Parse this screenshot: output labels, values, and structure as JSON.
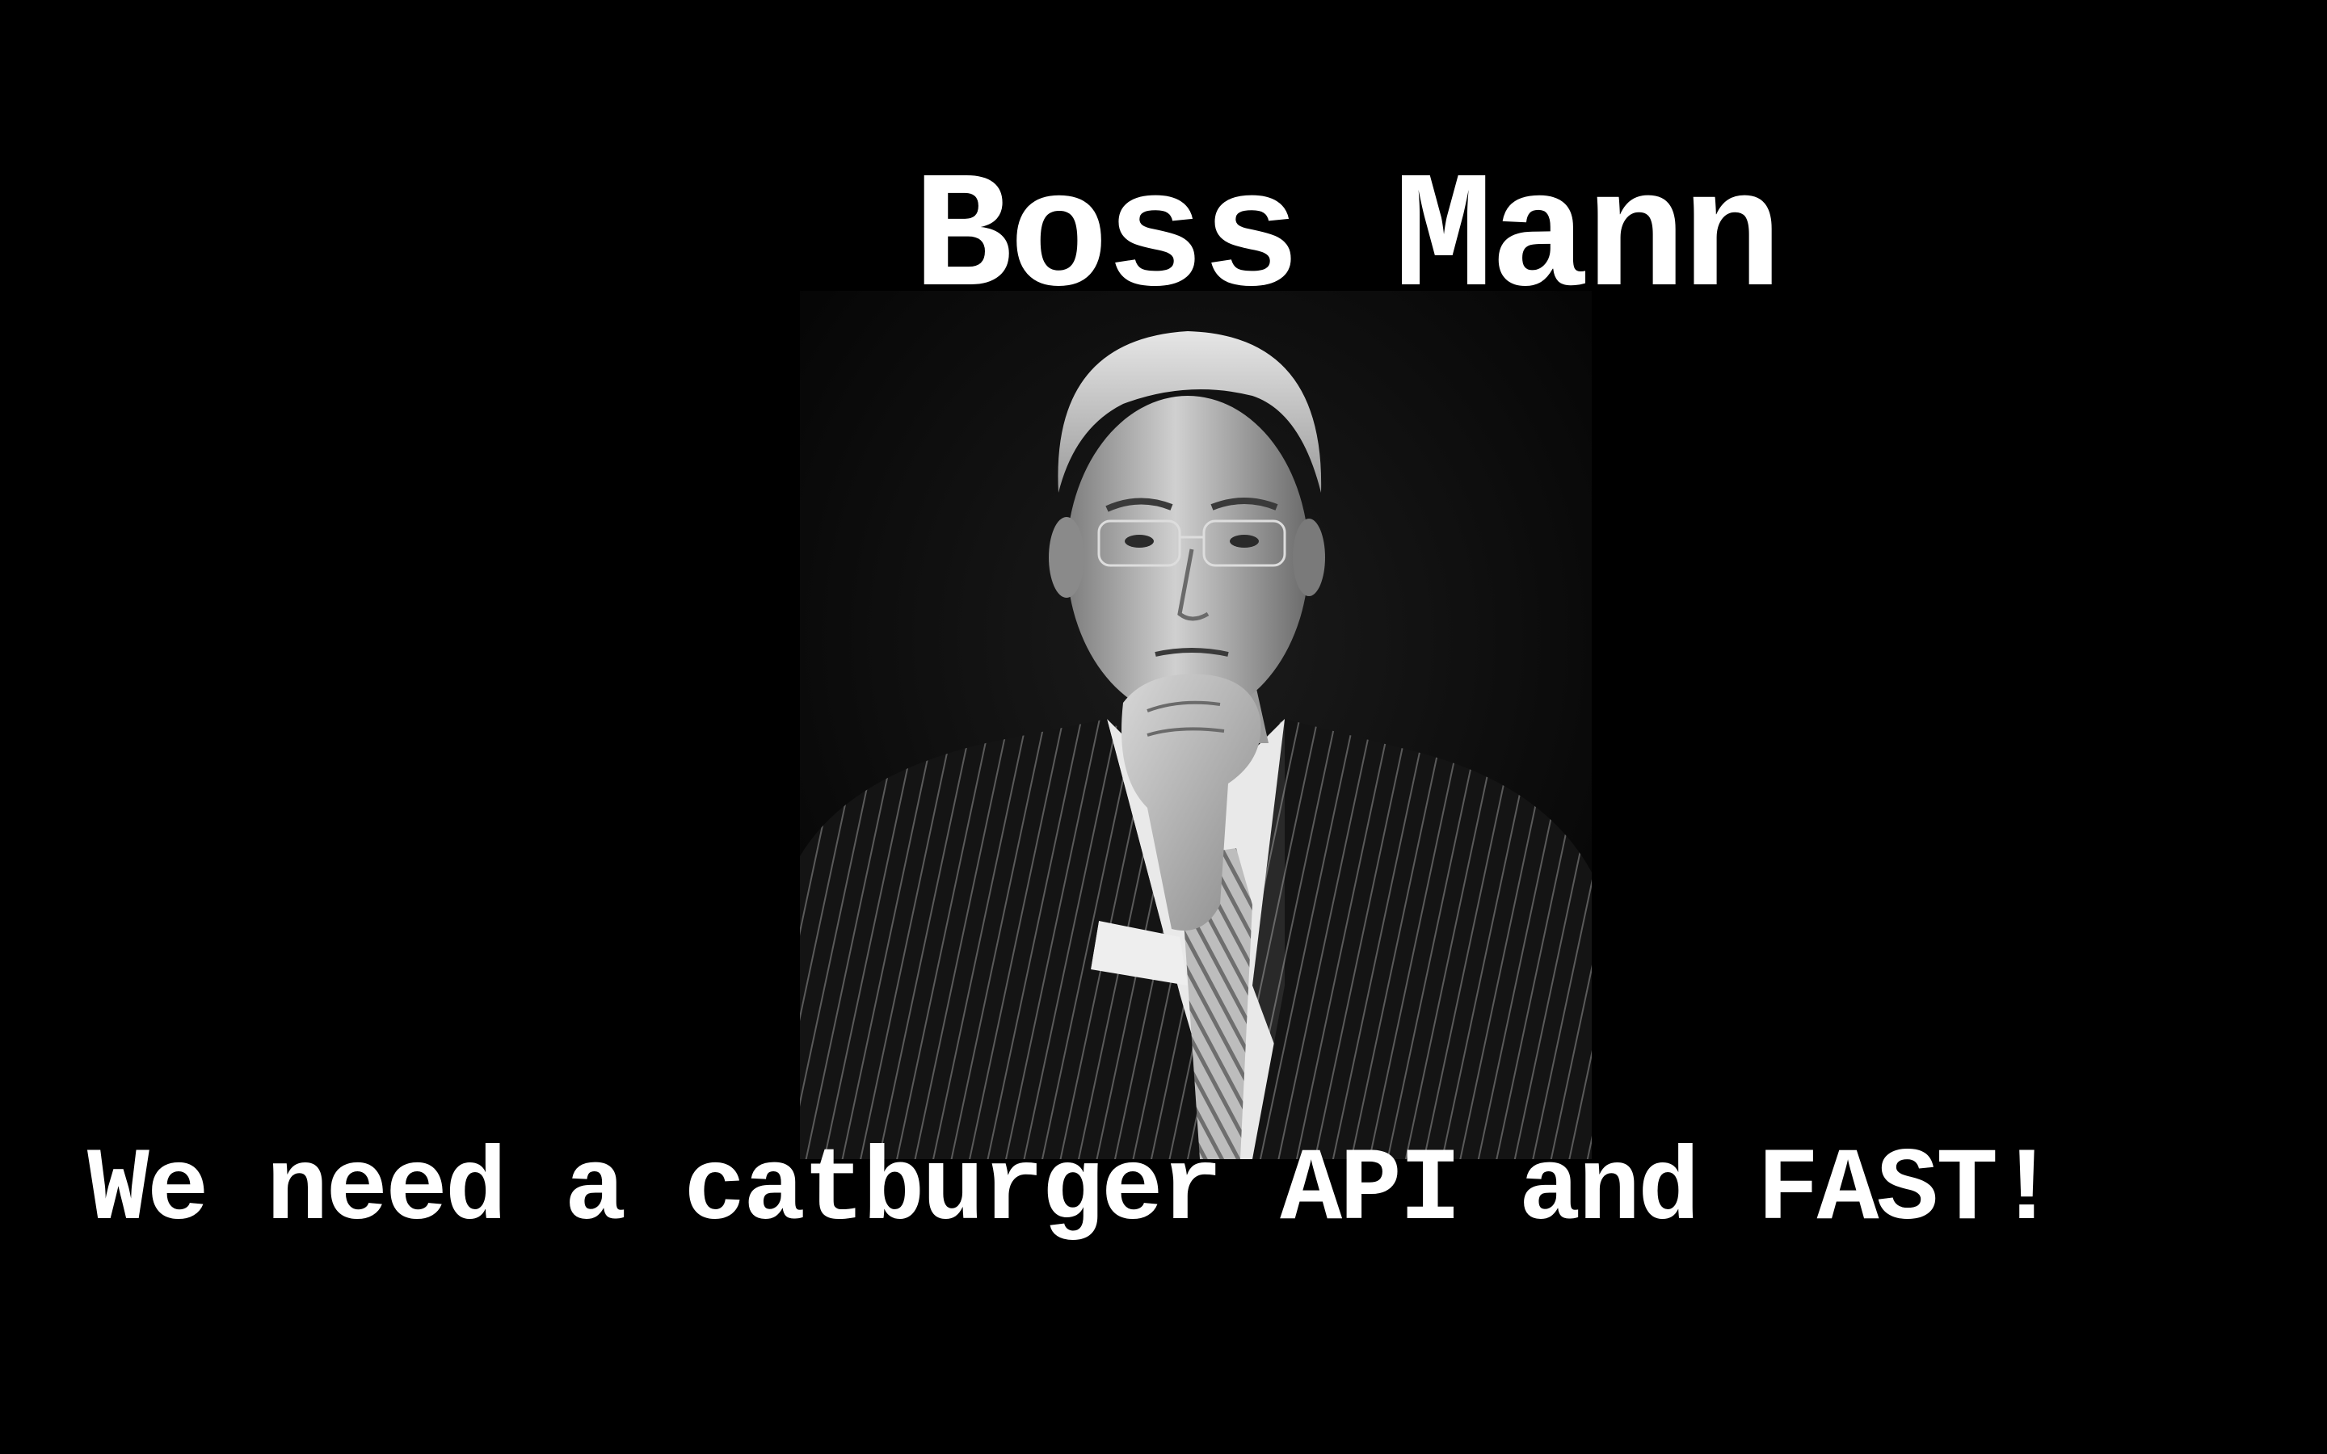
{
  "slide": {
    "title": "Boss Mann",
    "caption": "We need a catburger API and FAST!",
    "background_color": "#000000",
    "text_color": "#ffffff"
  },
  "portrait": {
    "subject": "black-and-white portrait of a man in a pinstripe suit with hand on chin"
  }
}
